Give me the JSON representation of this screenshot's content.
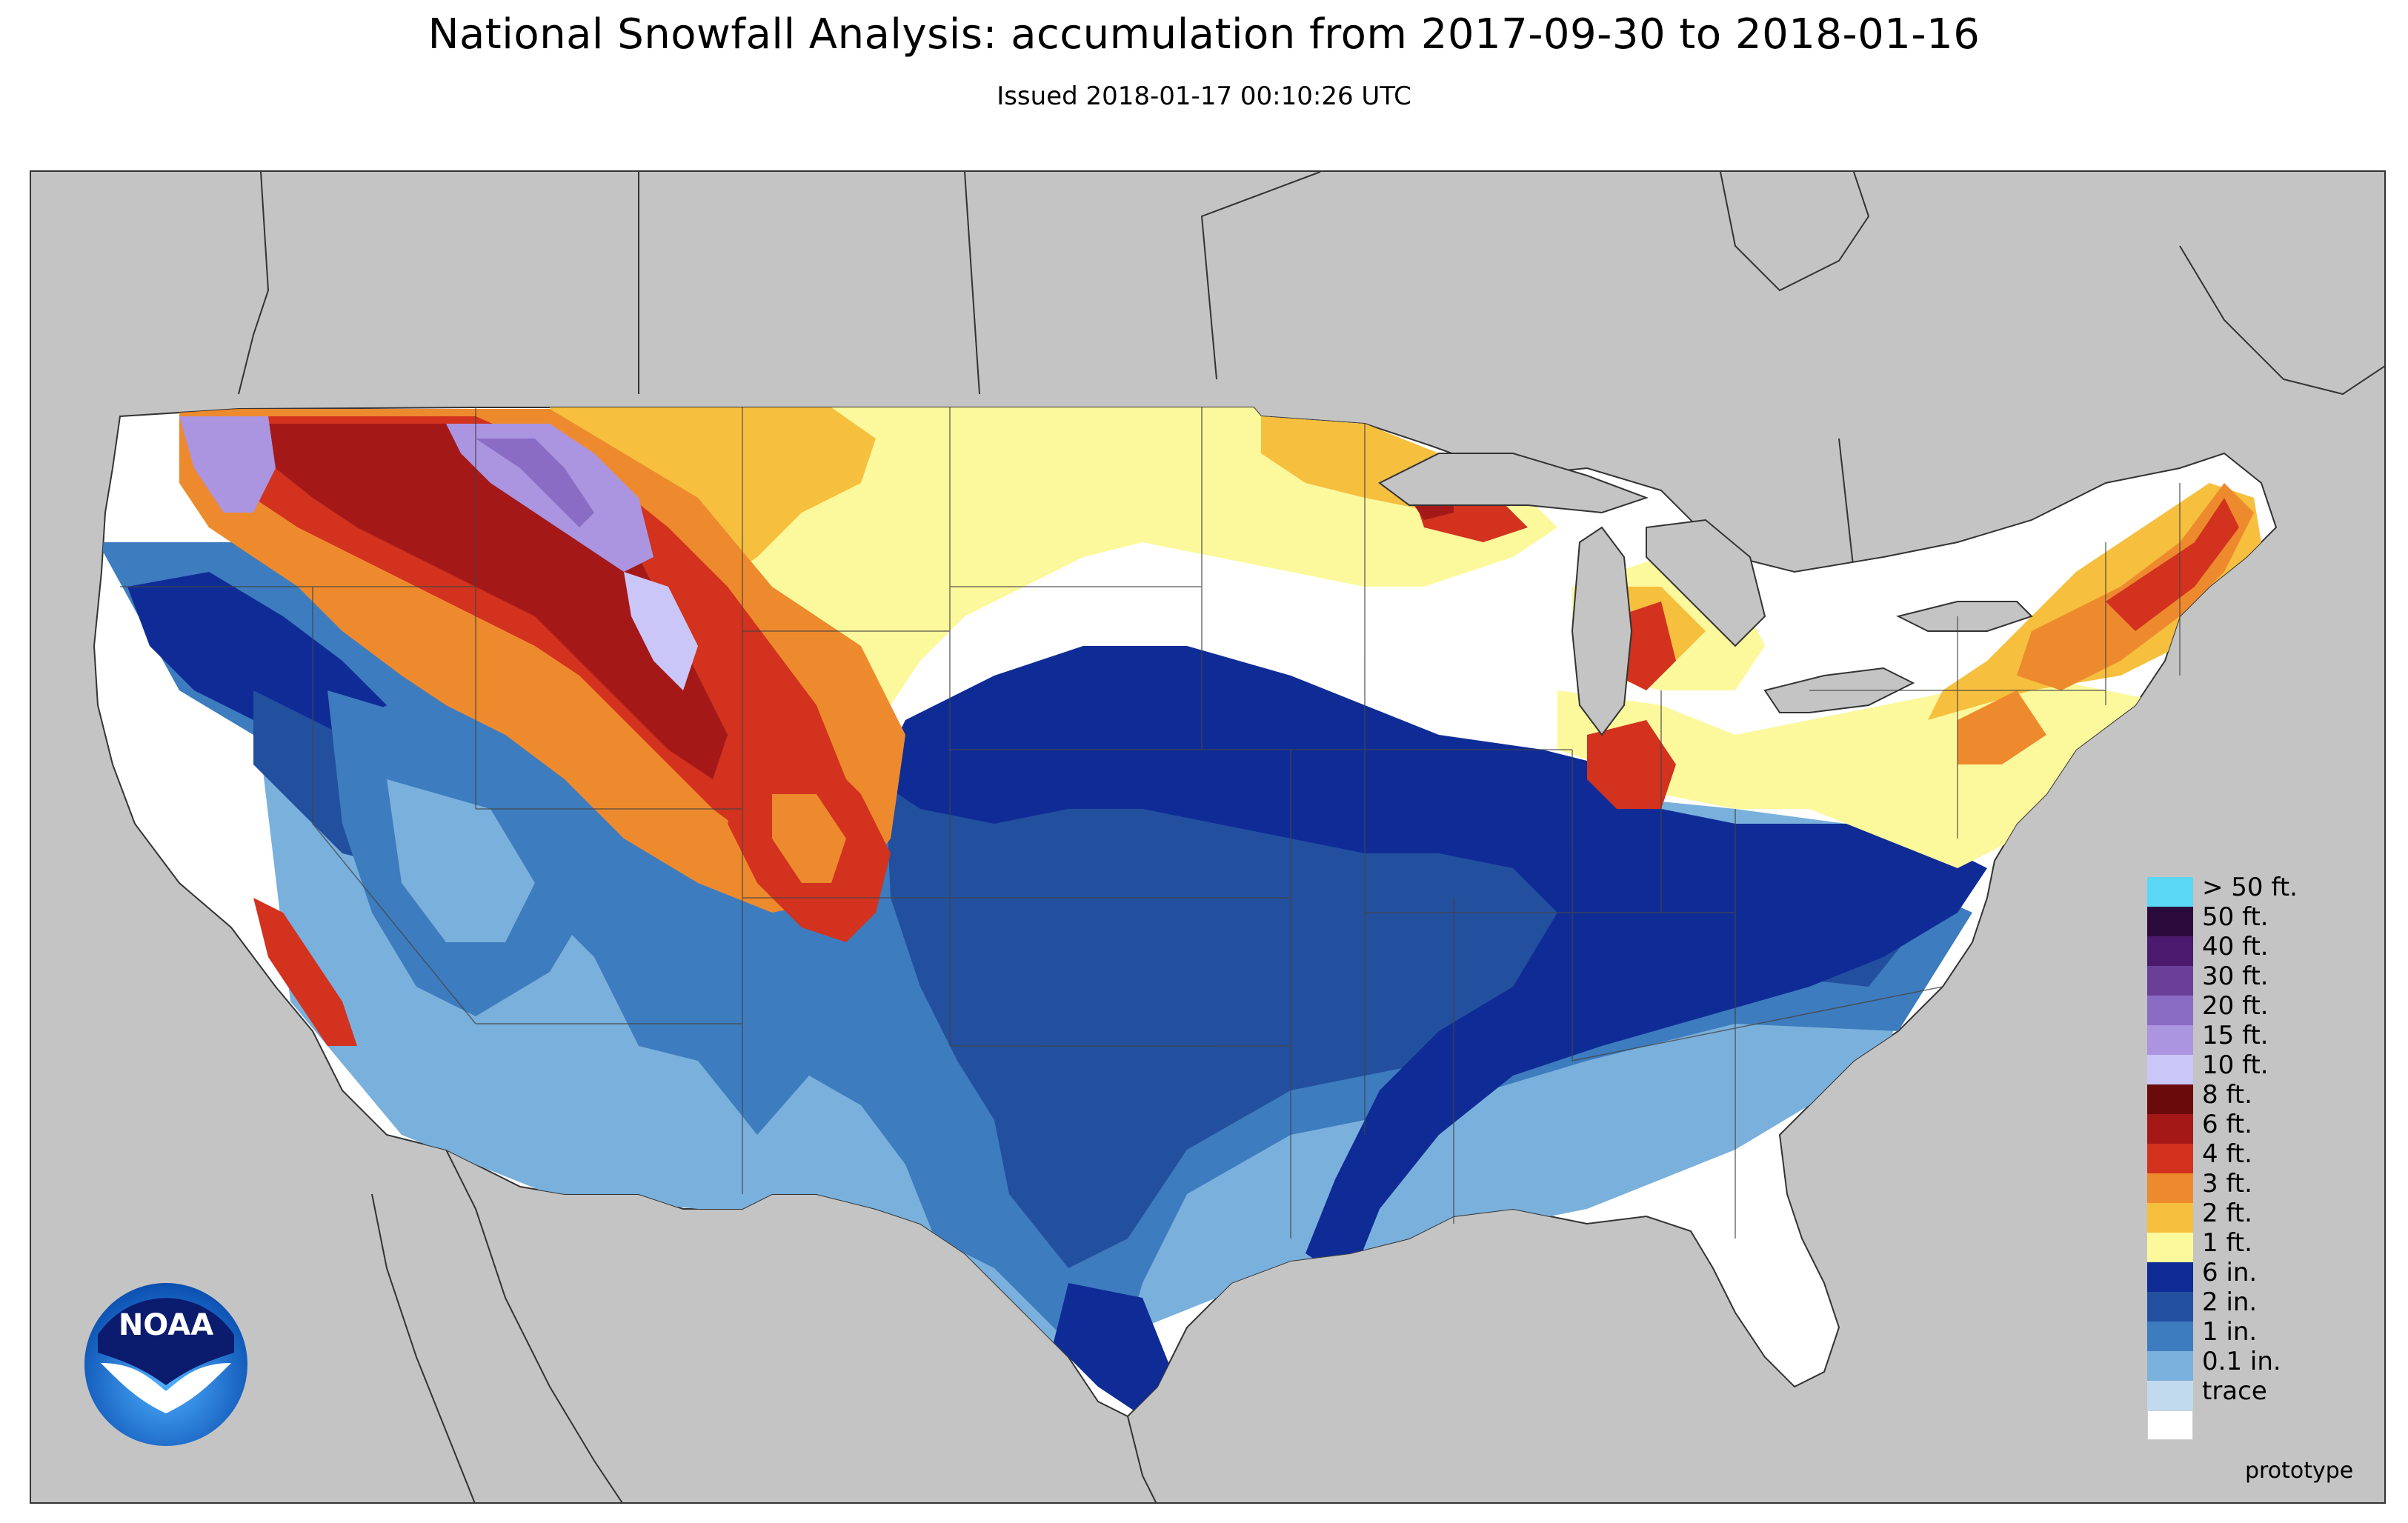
{
  "title": "National Snowfall Analysis: accumulation from 2017-09-30 to 2018-01-16",
  "subtitle": "Issued 2018-01-17 00:10:26 UTC",
  "map": {
    "region": "Contiguous United States",
    "colors": {
      "background_land_outside": "#c4c4c4",
      "border_lines": "#333333"
    }
  },
  "legend": {
    "items": [
      {
        "label": "> 50 ft.",
        "color": "#5ad8f5"
      },
      {
        "label": "50 ft.",
        "color": "#2a0a3a"
      },
      {
        "label": "40 ft.",
        "color": "#4b1a6e"
      },
      {
        "label": "30 ft.",
        "color": "#6b3f98"
      },
      {
        "label": "20 ft.",
        "color": "#8a6cc4"
      },
      {
        "label": "15 ft.",
        "color": "#ab94e0"
      },
      {
        "label": "10 ft.",
        "color": "#cbc6f8"
      },
      {
        "label": "8 ft.",
        "color": "#6a0b0b"
      },
      {
        "label": "6 ft.",
        "color": "#a41818"
      },
      {
        "label": "4 ft.",
        "color": "#d2321e"
      },
      {
        "label": "3 ft.",
        "color": "#ee8a2e"
      },
      {
        "label": "2 ft.",
        "color": "#f6bf3e"
      },
      {
        "label": "1 ft.",
        "color": "#fcf89c"
      },
      {
        "label": "6 in.",
        "color": "#0f2c96"
      },
      {
        "label": "2 in.",
        "color": "#23509e"
      },
      {
        "label": "1 in.",
        "color": "#3d7cbe"
      },
      {
        "label": "0.1 in.",
        "color": "#7ab0dc"
      },
      {
        "label": "trace",
        "color": "#c2daee"
      }
    ],
    "last_color": "#ffffff"
  },
  "footer": {
    "prototype_label": "prototype"
  },
  "logo": {
    "text": "NOAA",
    "icon": "noaa-logo-icon"
  }
}
